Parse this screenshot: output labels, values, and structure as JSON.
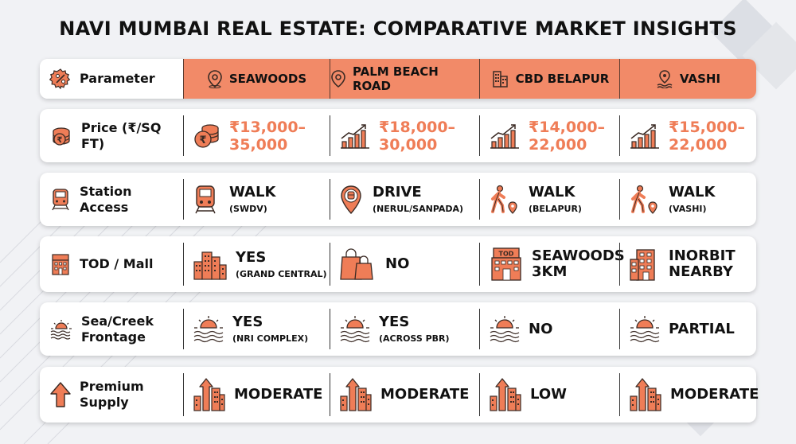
{
  "title": "NAVI MUMBAI REAL ESTATE: COMPARATIVE MARKET INSIGHTS",
  "colors": {
    "accent": "#f28a68",
    "accent_text": "#ef7d57",
    "dark": "#3a2a24",
    "background": "#f1f2f5"
  },
  "header": {
    "parameter": "Parameter",
    "locations": [
      "SEAWOODS",
      "PALM BEACH ROAD",
      "CBD BELAPUR",
      "VASHI"
    ],
    "icons": [
      "location-pin-icon",
      "location-pin-icon",
      "building-icon",
      "coastal-pin-icon"
    ]
  },
  "rows": [
    {
      "label": "Price (₹/SQ FT)",
      "label_icon": "rupee-coins-icon",
      "cells": [
        {
          "main1": "₹13,000–",
          "main2": "35,000",
          "icon": "rupee-coins-icon"
        },
        {
          "main1": "₹18,000–",
          "main2": "30,000",
          "icon": "growth-chart-icon"
        },
        {
          "main1": "₹14,000–",
          "main2": "22,000",
          "icon": "growth-chart-icon"
        },
        {
          "main1": "₹15,000–",
          "main2": "22,000",
          "icon": "growth-chart-icon"
        }
      ]
    },
    {
      "label1": "Station",
      "label2": "Access",
      "label_icon": "train-icon",
      "cells": [
        {
          "main": "WALK",
          "sub": "(SWDV)",
          "icon": "train-icon"
        },
        {
          "main": "DRIVE",
          "sub": "(NERUL/SANPADA)",
          "icon": "train-pin-icon"
        },
        {
          "main": "WALK",
          "sub": "(BELAPUR)",
          "icon": "walking-person-icon"
        },
        {
          "main": "WALK",
          "sub": "(VASHI)",
          "icon": "walking-person-icon"
        }
      ]
    },
    {
      "label": "TOD / Mall",
      "label_icon": "tod-building-icon",
      "cells": [
        {
          "main": "YES",
          "sub": "(GRAND CENTRAL)",
          "icon": "skyline-icon"
        },
        {
          "main": "NO",
          "sub": "",
          "icon": "shopping-bags-icon"
        },
        {
          "main1": "SEAWOODS",
          "main2": "3KM",
          "icon": "tod-building-icon",
          "tod_text": "TOD"
        },
        {
          "main1": "INORBIT",
          "main2": "NEARBY",
          "icon": "mall-building-icon"
        }
      ]
    },
    {
      "label1": "Sea/Creek",
      "label2": "Frontage",
      "label_icon": "sunset-waves-icon",
      "cells": [
        {
          "main": "YES",
          "sub": "(NRI COMPLEX)",
          "icon": "sunset-waves-icon"
        },
        {
          "main": "YES",
          "sub": "(ACROSS PBR)",
          "icon": "sunset-waves-icon"
        },
        {
          "main": "NO",
          "sub": "",
          "icon": "sunset-waves-icon"
        },
        {
          "main": "PARTIAL",
          "sub": "",
          "icon": "sunset-waves-icon"
        }
      ]
    },
    {
      "label1": "Premium",
      "label2": "Supply",
      "label_icon": "arrow-up-icon",
      "cells": [
        {
          "main": "MODERATE",
          "icon": "supply-buildings-icon"
        },
        {
          "main": "MODERATE",
          "icon": "supply-buildings-icon"
        },
        {
          "main": "LOW",
          "icon": "supply-buildings-icon"
        },
        {
          "main": "MODERATE",
          "icon": "supply-buildings-icon"
        }
      ]
    }
  ]
}
